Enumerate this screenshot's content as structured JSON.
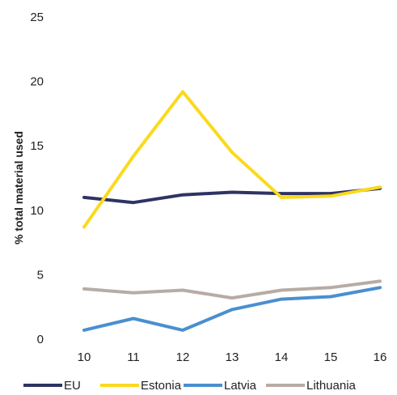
{
  "chart_data": {
    "type": "line",
    "x": [
      "10",
      "11",
      "12",
      "13",
      "14",
      "15",
      "16"
    ],
    "series": [
      {
        "name": "EU",
        "color": "#2e3363",
        "values": [
          11.0,
          10.6,
          11.2,
          11.4,
          11.3,
          11.3,
          11.7
        ]
      },
      {
        "name": "Estonia",
        "color": "#fbd91d",
        "values": [
          8.7,
          14.2,
          19.2,
          14.5,
          11.0,
          11.1,
          11.8
        ]
      },
      {
        "name": "Latvia",
        "color": "#4a8fd0",
        "values": [
          0.7,
          1.6,
          0.7,
          2.3,
          3.1,
          3.3,
          4.0
        ]
      },
      {
        "name": "Lithuania",
        "color": "#b7aca5",
        "values": [
          3.9,
          3.6,
          3.8,
          3.2,
          3.8,
          4.0,
          4.5
        ]
      }
    ],
    "ylabel": "% total material used",
    "ylim": [
      0,
      25
    ],
    "yticks": [
      "0",
      "5",
      "10",
      "15",
      "20",
      "25"
    ],
    "grid": false,
    "legend_position": "bottom"
  }
}
